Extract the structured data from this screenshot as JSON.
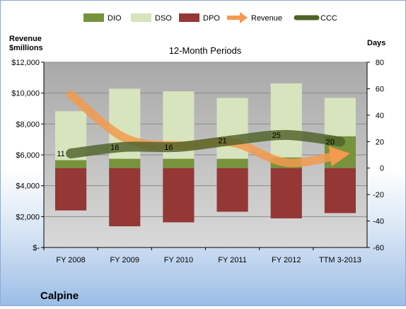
{
  "chart_data": {
    "type": "bar",
    "title": "12-Month Periods",
    "company": "Calpine",
    "categories": [
      "FY 2008",
      "FY 2009",
      "FY 2010",
      "FY 2011",
      "FY 2012",
      "TTM 3-2013"
    ],
    "left_axis": {
      "label_line1": "Revenue",
      "label_line2": "$millions",
      "min": 0,
      "max": 12000,
      "ticks": [
        0,
        2000,
        4000,
        6000,
        8000,
        10000,
        12000
      ],
      "tick_labels": [
        "$-",
        "$2,000",
        "$4,000",
        "$6,000",
        "$8,000",
        "$10,000",
        "$12,000"
      ]
    },
    "right_axis": {
      "label": "Days",
      "min": -60,
      "max": 80,
      "ticks": [
        -60,
        -40,
        -20,
        0,
        20,
        40,
        60,
        80
      ],
      "tick_labels": [
        "-60",
        "-40",
        "-20",
        "0",
        "20",
        "40",
        "60",
        "80"
      ]
    },
    "series": [
      {
        "name": "DIO",
        "axis": "right",
        "kind": "stacked-bar",
        "values": [
          6,
          7,
          7,
          7,
          8,
          24
        ]
      },
      {
        "name": "DSO",
        "axis": "right",
        "kind": "stacked-bar",
        "values": [
          37,
          53,
          51,
          46,
          56,
          29
        ]
      },
      {
        "name": "DPO",
        "axis": "right",
        "kind": "negative-bar",
        "values": [
          -32,
          -44,
          -41,
          -33,
          -38,
          -34
        ]
      },
      {
        "name": "Revenue",
        "axis": "left",
        "kind": "arrow-line",
        "values": [
          9900,
          7100,
          6600,
          6800,
          5500,
          6000
        ]
      },
      {
        "name": "CCC",
        "axis": "right",
        "kind": "line",
        "values": [
          11,
          16,
          16,
          21,
          25,
          20
        ]
      }
    ],
    "data_labels": [
      "11",
      "16",
      "16",
      "21",
      "25",
      "20"
    ],
    "colors": {
      "DIO": "#77933c",
      "DSO": "#d7e4bd",
      "DPO": "#953735",
      "Revenue": "#e46c0a",
      "CCC": "#4f6228",
      "plot_bg": "#b6b6b6"
    },
    "legend_position": "top",
    "grid": true
  }
}
